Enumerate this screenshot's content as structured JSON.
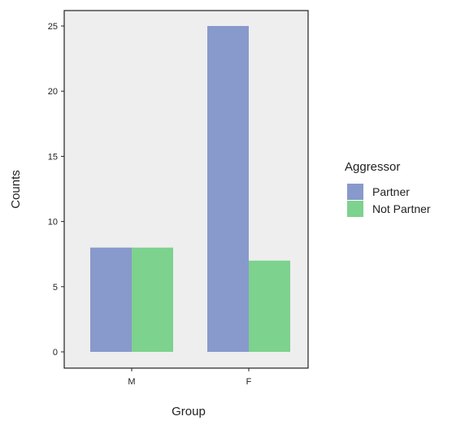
{
  "chart_data": {
    "type": "bar",
    "title": "",
    "xlabel": "Group",
    "ylabel": "Counts",
    "categories": [
      "M",
      "F"
    ],
    "series": [
      {
        "name": "Partner",
        "values": [
          8,
          25
        ]
      },
      {
        "name": "Not Partner",
        "values": [
          8,
          7
        ]
      }
    ],
    "ylim": [
      0,
      26.3
    ],
    "yticks": [
      0,
      5,
      10,
      15,
      20,
      25
    ],
    "grid": false,
    "legend": {
      "title": "Aggressor",
      "position": "right"
    },
    "colors": {
      "Partner": "#8899cc",
      "Not Partner": "#7dd28e",
      "panel": "#eeeeee"
    }
  }
}
